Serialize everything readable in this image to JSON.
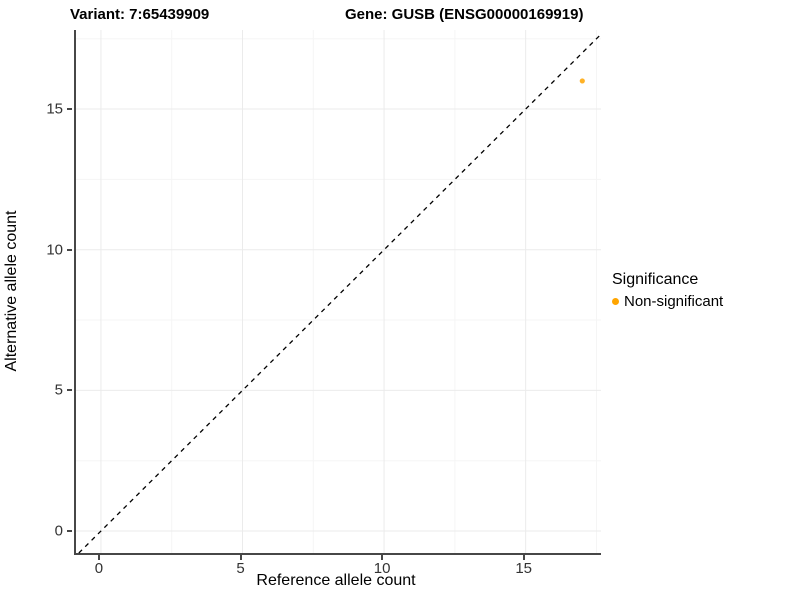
{
  "titles": {
    "variant": "Variant: 7:65439909",
    "gene": "Gene: GUSB (ENSG00000169919)"
  },
  "chart_data": {
    "type": "scatter",
    "xlabel": "Reference allele count",
    "ylabel": "Alternative allele count",
    "xlim": [
      -0.88,
      17.66
    ],
    "ylim": [
      -0.78,
      17.81
    ],
    "x_ticks": [
      0,
      5,
      10,
      15
    ],
    "y_ticks": [
      0,
      5,
      10,
      15
    ],
    "x_minor_ticks": [
      2.5,
      7.5,
      12.5,
      17.5
    ],
    "y_minor_ticks": [
      2.5,
      7.5,
      12.5,
      17.5
    ],
    "grid": true,
    "points": [
      {
        "x": 17,
        "y": 16,
        "series": "Non-significant"
      }
    ],
    "reference_line": {
      "slope": 1,
      "intercept": 0,
      "style": "dashed",
      "color": "#000000"
    },
    "legend": {
      "position": "right",
      "title": "Significance",
      "items": [
        {
          "label": "Non-significant",
          "color": "#FFA500"
        }
      ]
    },
    "colors": {
      "point": "#FFA500",
      "grid_major": "#EBEBEB",
      "grid_minor": "#F5F5F5",
      "axis_line": "#474747",
      "tick_text": "#333333"
    }
  }
}
